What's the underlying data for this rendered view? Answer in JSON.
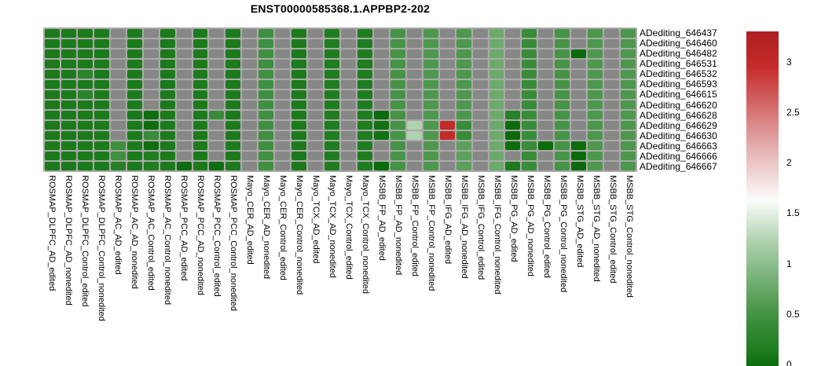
{
  "title": "ENST00000585368.1.APPBP2-202",
  "colors": {
    "page_background": "#FFFFFF",
    "text": "#000000",
    "panel_background": "#A9A9A9",
    "na_cell": "#878787"
  },
  "chart_data": {
    "type": "heatmap",
    "title": "ENST00000585368.1.APPBP2-202",
    "legend_position": "right",
    "grid": "off",
    "rows": [
      "ADediting_646437",
      "ADediting_646460",
      "ADediting_646482",
      "ADediting_646531",
      "ADediting_646532",
      "ADediting_646593",
      "ADediting_646615",
      "ADediting_646620",
      "ADediting_646628",
      "ADediting_646629",
      "ADediting_646630",
      "ADediting_646663",
      "ADediting_646666",
      "ADediting_646667"
    ],
    "columns": [
      "ROSMAP_DLPFC_AD_edited",
      "ROSMAP_DLPFC_AD_nonedited",
      "ROSMAP_DLPFC_Control_edited",
      "ROSMAP_DLPFC_Control_nonedited",
      "ROSMAP_AC_AD_edited",
      "ROSMAP_AC_AD_nonedited",
      "ROSMAP_AC_Control_edited",
      "ROSMAP_AC_Control_nonedited",
      "ROSMAP_PCC_AD_edited",
      "ROSMAP_PCC_AD_nonedited",
      "ROSMAP_PCC_Control_edited",
      "ROSMAP_PCC_Control_nonedited",
      "Mayo_CER_AD_edited",
      "Mayo_CER_AD_nonedited",
      "Mayo_CER_Control_edited",
      "Mayo_CER_Control_nonedited",
      "Mayo_TCX_AD_edited",
      "Mayo_TCX_AD_nonedited",
      "Mayo_TCX_Control_edited",
      "Mayo_TCX_Control_nonedited",
      "MSBB_FP_AD_edited",
      "MSBB_FP_AD_nonedited",
      "MSBB_FP_Control_edited",
      "MSBB_FP_Control_nonedited",
      "MSBB_IFG_AD_edited",
      "MSBB_IFG_AD_nonedited",
      "MSBB_IFG_Control_edited",
      "MSBB_IFG_Control_nonedited",
      "MSBB_PG_AD_edited",
      "MSBB_PG_AD_nonedited",
      "MSBB_PG_Control_edited",
      "MSBB_PG_Control_nonedited",
      "MSBB_STG_AD_edited",
      "MSBB_STG_AD_nonedited",
      "MSBB_STG_Control_edited",
      "MSBB_STG_Control_nonedited"
    ],
    "values": [
      [
        0.15,
        0.15,
        0.15,
        0.15,
        null,
        0.15,
        null,
        0.15,
        null,
        0.15,
        null,
        0.15,
        null,
        0.5,
        null,
        0.15,
        null,
        0.18,
        null,
        0.18,
        null,
        0.55,
        null,
        0.6,
        null,
        0.6,
        null,
        0.8,
        null,
        0.45,
        null,
        0.55,
        null,
        0.6,
        null,
        0.6
      ],
      [
        0.15,
        0.15,
        0.15,
        0.15,
        null,
        0.15,
        null,
        0.15,
        null,
        0.15,
        null,
        0.15,
        null,
        0.5,
        null,
        0.15,
        null,
        0.18,
        null,
        0.18,
        null,
        0.55,
        null,
        0.6,
        null,
        0.6,
        null,
        0.8,
        null,
        0.45,
        null,
        0.55,
        null,
        0.6,
        null,
        0.6
      ],
      [
        0.15,
        0.15,
        0.15,
        0.15,
        null,
        0.15,
        null,
        0.15,
        null,
        0.15,
        null,
        0.15,
        null,
        0.5,
        null,
        0.15,
        null,
        0.18,
        null,
        0.18,
        null,
        0.55,
        null,
        0.6,
        null,
        0.6,
        null,
        0.8,
        null,
        0.45,
        null,
        0.55,
        0.03,
        0.6,
        null,
        0.6
      ],
      [
        0.15,
        0.15,
        0.15,
        0.15,
        null,
        0.15,
        null,
        0.15,
        null,
        0.15,
        null,
        0.15,
        null,
        0.5,
        null,
        0.15,
        null,
        0.18,
        null,
        0.18,
        null,
        0.55,
        null,
        0.6,
        null,
        0.6,
        null,
        0.8,
        null,
        0.45,
        null,
        0.55,
        null,
        0.6,
        null,
        0.6
      ],
      [
        0.15,
        0.15,
        0.3,
        0.15,
        null,
        0.15,
        null,
        0.15,
        null,
        0.15,
        null,
        0.15,
        null,
        0.5,
        null,
        0.15,
        null,
        0.18,
        null,
        0.18,
        null,
        0.55,
        null,
        0.6,
        null,
        0.6,
        null,
        0.8,
        null,
        0.45,
        null,
        0.55,
        null,
        0.6,
        null,
        0.6
      ],
      [
        0.15,
        0.15,
        0.15,
        0.15,
        null,
        0.15,
        null,
        0.15,
        null,
        0.15,
        null,
        0.15,
        null,
        0.5,
        null,
        0.15,
        null,
        0.18,
        null,
        0.18,
        null,
        0.55,
        null,
        0.6,
        null,
        0.6,
        null,
        0.8,
        null,
        0.45,
        null,
        0.55,
        null,
        0.6,
        null,
        0.6
      ],
      [
        0.15,
        0.15,
        0.3,
        0.15,
        null,
        0.15,
        null,
        0.15,
        null,
        0.15,
        null,
        0.15,
        null,
        0.5,
        null,
        0.15,
        null,
        0.18,
        null,
        0.18,
        null,
        0.55,
        null,
        0.6,
        null,
        0.6,
        null,
        0.8,
        null,
        0.45,
        null,
        0.55,
        null,
        0.6,
        null,
        0.6
      ],
      [
        0.15,
        0.15,
        0.15,
        0.15,
        null,
        0.15,
        null,
        0.15,
        null,
        0.15,
        null,
        0.15,
        null,
        0.5,
        null,
        0.15,
        null,
        0.18,
        null,
        0.18,
        null,
        0.55,
        null,
        0.6,
        null,
        0.6,
        null,
        0.8,
        null,
        0.45,
        null,
        0.55,
        null,
        0.6,
        null,
        0.6
      ],
      [
        0.15,
        0.15,
        0.15,
        0.15,
        null,
        0.15,
        0.05,
        0.15,
        null,
        0.15,
        0.45,
        0.15,
        null,
        0.5,
        null,
        0.15,
        null,
        0.18,
        null,
        0.18,
        0.03,
        0.55,
        null,
        0.6,
        null,
        0.6,
        null,
        0.8,
        0.25,
        0.45,
        null,
        0.55,
        null,
        0.6,
        null,
        0.6
      ],
      [
        0.15,
        0.15,
        0.15,
        0.15,
        null,
        0.15,
        0.05,
        0.15,
        null,
        0.15,
        null,
        0.15,
        null,
        0.5,
        null,
        0.15,
        null,
        0.18,
        null,
        0.18,
        0.08,
        0.55,
        1.25,
        0.6,
        3.0,
        0.45,
        null,
        0.8,
        0.04,
        0.45,
        null,
        0.55,
        null,
        0.6,
        null,
        0.6
      ],
      [
        0.15,
        0.15,
        0.15,
        0.15,
        null,
        0.15,
        0.45,
        0.15,
        null,
        0.15,
        null,
        0.15,
        null,
        0.5,
        null,
        0.15,
        null,
        0.18,
        null,
        0.18,
        0.08,
        0.55,
        1.25,
        0.6,
        2.95,
        0.45,
        null,
        0.8,
        0.04,
        0.45,
        null,
        0.55,
        null,
        0.6,
        null,
        0.6
      ],
      [
        0.15,
        0.15,
        0.15,
        0.15,
        0.5,
        0.15,
        0.05,
        0.15,
        null,
        0.15,
        null,
        0.15,
        null,
        0.5,
        null,
        0.15,
        null,
        0.18,
        null,
        0.18,
        null,
        0.55,
        null,
        0.6,
        null,
        0.7,
        null,
        0.8,
        0.04,
        0.45,
        0.04,
        0.55,
        0.04,
        0.6,
        null,
        0.6
      ],
      [
        0.15,
        0.15,
        0.15,
        0.15,
        0.5,
        0.15,
        0.2,
        0.15,
        null,
        0.15,
        null,
        0.15,
        null,
        0.5,
        null,
        0.15,
        null,
        0.18,
        null,
        0.18,
        null,
        0.55,
        null,
        0.6,
        null,
        0.7,
        null,
        0.8,
        null,
        0.45,
        null,
        0.55,
        0.03,
        0.6,
        null,
        0.6
      ],
      [
        0.15,
        0.15,
        0.15,
        0.15,
        0.25,
        0.15,
        0.18,
        0.15,
        0.05,
        0.15,
        0.05,
        0.15,
        null,
        0.5,
        null,
        0.15,
        null,
        0.18,
        null,
        0.18,
        0.03,
        0.55,
        null,
        0.6,
        null,
        0.7,
        null,
        0.8,
        0.15,
        0.45,
        null,
        0.55,
        0.03,
        0.6,
        null,
        0.6
      ]
    ],
    "na_color": "#878787",
    "panel_background": "#A9A9A9",
    "color_scale": {
      "domain": [
        0,
        3.3
      ],
      "tick_values": [
        3,
        2.5,
        2,
        1.5,
        1,
        0.5,
        0
      ],
      "tick_labels": [
        "3",
        "2.5",
        "2",
        "1.5",
        "1",
        "0.5",
        "0"
      ],
      "gradient_stops": [
        [
          0.0,
          "#076607"
        ],
        [
          0.15,
          "#1B7B1B"
        ],
        [
          0.45,
          "#388C38"
        ],
        [
          0.6,
          "#4C984C"
        ],
        [
          0.8,
          "#6BAA6B"
        ],
        [
          1.25,
          "#AFD2AF"
        ],
        [
          1.65,
          "#FBFDFB"
        ],
        [
          2.2,
          "#E2A9A9"
        ],
        [
          2.95,
          "#C62B2B"
        ],
        [
          3.3,
          "#AD1F1F"
        ]
      ]
    }
  }
}
